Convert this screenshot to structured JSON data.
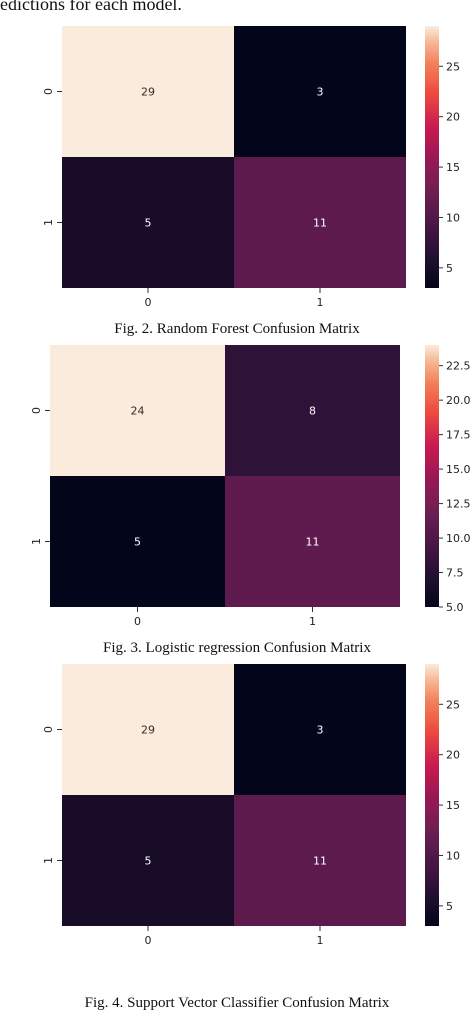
{
  "intro_text": "edictions for each model.",
  "chart_data": [
    {
      "type": "heatmap",
      "caption": "Fig. 2. Random Forest Confusion Matrix",
      "row_labels": [
        "0",
        "1"
      ],
      "col_labels": [
        "0",
        "1"
      ],
      "values": [
        [
          29,
          3
        ],
        [
          5,
          11
        ]
      ],
      "colorbar": {
        "ticks": [
          5,
          10,
          15,
          20,
          25
        ],
        "labels": [
          "5",
          "10",
          "15",
          "20",
          "25"
        ],
        "range": [
          3,
          29
        ]
      }
    },
    {
      "type": "heatmap",
      "caption": "Fig. 3. Logistic regression Confusion Matrix",
      "row_labels": [
        "0",
        "1"
      ],
      "col_labels": [
        "0",
        "1"
      ],
      "values": [
        [
          24,
          8
        ],
        [
          5,
          11
        ]
      ],
      "colorbar": {
        "ticks": [
          5,
          7.5,
          10,
          12.5,
          15,
          17.5,
          20,
          22.5
        ],
        "labels": [
          "5.0",
          "7.5",
          "10.0",
          "12.5",
          "15.0",
          "17.5",
          "20.0",
          "22.5"
        ],
        "range": [
          5,
          24
        ]
      }
    },
    {
      "type": "heatmap",
      "caption": "Fig. 4. Support Vector Classifier Confusion Matrix",
      "row_labels": [
        "0",
        "1"
      ],
      "col_labels": [
        "0",
        "1"
      ],
      "values": [
        [
          29,
          3
        ],
        [
          5,
          11
        ]
      ],
      "colorbar": {
        "ticks": [
          5,
          10,
          15,
          20,
          25
        ],
        "labels": [
          "5",
          "10",
          "15",
          "20",
          "25"
        ],
        "range": [
          3,
          29
        ]
      }
    }
  ]
}
